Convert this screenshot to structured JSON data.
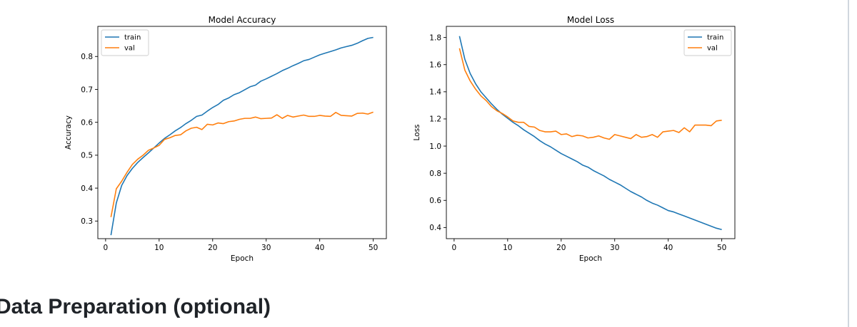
{
  "page": {
    "heading": "Data Preparation (optional)"
  },
  "colors": {
    "train": "#1f77b4",
    "val": "#ff7f0e"
  },
  "chart_data": [
    {
      "type": "line",
      "title": "Model Accuracy",
      "xlabel": "Epoch",
      "ylabel": "Accuracy",
      "xlim": [
        -1.45,
        52.45
      ],
      "ylim": [
        0.2465,
        0.8915
      ],
      "xticks": [
        0,
        10,
        20,
        30,
        40,
        50
      ],
      "yticks": [
        0.3,
        0.4,
        0.5,
        0.6,
        0.7,
        0.8
      ],
      "ytick_labels": [
        "0.3",
        "0.4",
        "0.5",
        "0.6",
        "0.7",
        "0.8"
      ],
      "grid": false,
      "legend": "upper left",
      "x": [
        1,
        2,
        3,
        4,
        5,
        6,
        7,
        8,
        9,
        10,
        11,
        12,
        13,
        14,
        15,
        16,
        17,
        18,
        19,
        20,
        21,
        22,
        23,
        24,
        25,
        26,
        27,
        28,
        29,
        30,
        31,
        32,
        33,
        34,
        35,
        36,
        37,
        38,
        39,
        40,
        41,
        42,
        43,
        44,
        45,
        46,
        47,
        48,
        49,
        50
      ],
      "series": [
        {
          "name": "train",
          "values": [
            0.257,
            0.355,
            0.408,
            0.438,
            0.46,
            0.478,
            0.493,
            0.507,
            0.522,
            0.537,
            0.551,
            0.562,
            0.574,
            0.584,
            0.596,
            0.606,
            0.618,
            0.622,
            0.634,
            0.645,
            0.654,
            0.667,
            0.674,
            0.684,
            0.69,
            0.699,
            0.708,
            0.713,
            0.725,
            0.732,
            0.74,
            0.748,
            0.757,
            0.764,
            0.772,
            0.779,
            0.787,
            0.791,
            0.798,
            0.805,
            0.81,
            0.815,
            0.82,
            0.826,
            0.83,
            0.834,
            0.84,
            0.848,
            0.855,
            0.858
          ]
        },
        {
          "name": "val",
          "values": [
            0.312,
            0.398,
            0.421,
            0.448,
            0.472,
            0.488,
            0.5,
            0.515,
            0.522,
            0.53,
            0.548,
            0.553,
            0.56,
            0.562,
            0.574,
            0.582,
            0.585,
            0.578,
            0.594,
            0.592,
            0.598,
            0.596,
            0.602,
            0.604,
            0.609,
            0.612,
            0.612,
            0.616,
            0.611,
            0.612,
            0.613,
            0.623,
            0.612,
            0.621,
            0.616,
            0.619,
            0.622,
            0.618,
            0.618,
            0.621,
            0.619,
            0.618,
            0.63,
            0.621,
            0.62,
            0.619,
            0.627,
            0.628,
            0.625,
            0.631
          ]
        }
      ]
    },
    {
      "type": "line",
      "title": "Model Loss",
      "xlabel": "Epoch",
      "ylabel": "Loss",
      "xlim": [
        -1.45,
        52.45
      ],
      "ylim": [
        0.318,
        1.882
      ],
      "xticks": [
        0,
        10,
        20,
        30,
        40,
        50
      ],
      "yticks": [
        0.4,
        0.6,
        0.8,
        1.0,
        1.2,
        1.4,
        1.6,
        1.8
      ],
      "ytick_labels": [
        "0.4",
        "0.6",
        "0.8",
        "1.0",
        "1.2",
        "1.4",
        "1.6",
        "1.8"
      ],
      "grid": false,
      "legend": "upper right",
      "x": [
        1,
        2,
        3,
        4,
        5,
        6,
        7,
        8,
        9,
        10,
        11,
        12,
        13,
        14,
        15,
        16,
        17,
        18,
        19,
        20,
        21,
        22,
        23,
        24,
        25,
        26,
        27,
        28,
        29,
        30,
        31,
        32,
        33,
        34,
        35,
        36,
        37,
        38,
        39,
        40,
        41,
        42,
        43,
        44,
        45,
        46,
        47,
        48,
        49,
        50
      ],
      "series": [
        {
          "name": "train",
          "values": [
            1.81,
            1.64,
            1.535,
            1.46,
            1.4,
            1.355,
            1.31,
            1.27,
            1.235,
            1.205,
            1.175,
            1.15,
            1.12,
            1.095,
            1.07,
            1.04,
            1.015,
            0.995,
            0.97,
            0.945,
            0.925,
            0.905,
            0.885,
            0.86,
            0.845,
            0.82,
            0.8,
            0.78,
            0.755,
            0.735,
            0.715,
            0.69,
            0.665,
            0.645,
            0.625,
            0.6,
            0.58,
            0.565,
            0.545,
            0.525,
            0.515,
            0.5,
            0.485,
            0.47,
            0.455,
            0.44,
            0.425,
            0.41,
            0.395,
            0.385
          ]
        },
        {
          "name": "val",
          "values": [
            1.72,
            1.56,
            1.48,
            1.42,
            1.37,
            1.335,
            1.29,
            1.26,
            1.24,
            1.215,
            1.185,
            1.175,
            1.175,
            1.145,
            1.14,
            1.115,
            1.105,
            1.105,
            1.11,
            1.085,
            1.09,
            1.07,
            1.08,
            1.075,
            1.06,
            1.065,
            1.075,
            1.06,
            1.05,
            1.085,
            1.075,
            1.065,
            1.055,
            1.085,
            1.065,
            1.07,
            1.085,
            1.065,
            1.105,
            1.11,
            1.115,
            1.1,
            1.135,
            1.105,
            1.155,
            1.155,
            1.155,
            1.15,
            1.185,
            1.19
          ]
        }
      ]
    }
  ]
}
